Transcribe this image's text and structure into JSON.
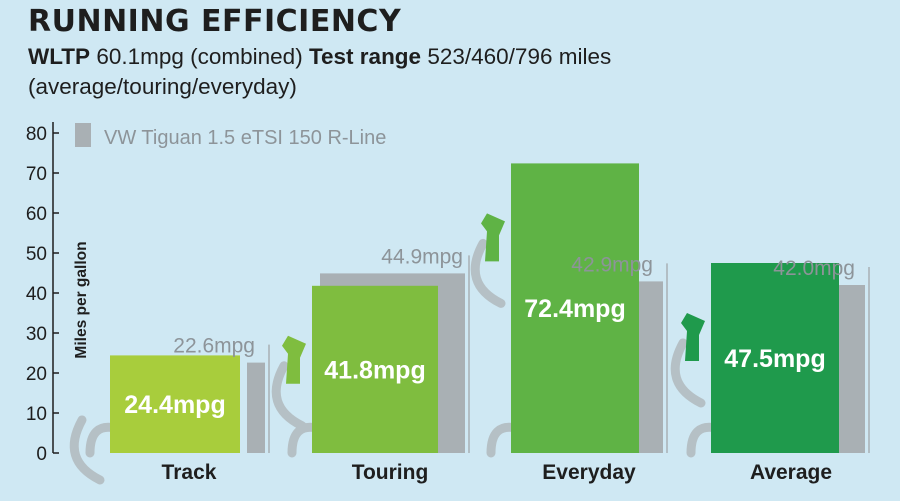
{
  "header": {
    "title": "RUNNING EFFICIENCY",
    "wltp_label": "WLTP",
    "wltp_value": "60.1mpg (combined)",
    "range_label": "Test range",
    "range_value": "523/460/796 miles (average/touring/everyday)"
  },
  "colors": {
    "background": "#cfe8f3",
    "comparison_bar": "#a9b0b4",
    "track": "#a8cd3c",
    "touring": "#7fbd3f",
    "everyday": "#5fb345",
    "average": "#1f9a4c",
    "pump_hose": "#b5c0c5"
  },
  "chart_data": {
    "type": "bar",
    "ylabel": "Miles per gallon",
    "ylim": [
      0,
      80
    ],
    "yticks": [
      0,
      10,
      20,
      30,
      40,
      50,
      60,
      70,
      80
    ],
    "categories": [
      "Track",
      "Touring",
      "Everyday",
      "Average"
    ],
    "series": [
      {
        "name": "",
        "values": [
          24.4,
          41.8,
          72.4,
          47.5
        ],
        "labels": [
          "24.4mpg",
          "41.8mpg",
          "72.4mpg",
          "47.5mpg"
        ]
      },
      {
        "name": "VW Tiguan 1.5 eTSI 150 R-Line",
        "values": [
          22.6,
          44.9,
          42.9,
          42.0
        ],
        "labels": [
          "22.6mpg",
          "44.9mpg",
          "42.9mpg",
          "42.0mpg"
        ]
      }
    ],
    "legend": "top-left"
  }
}
